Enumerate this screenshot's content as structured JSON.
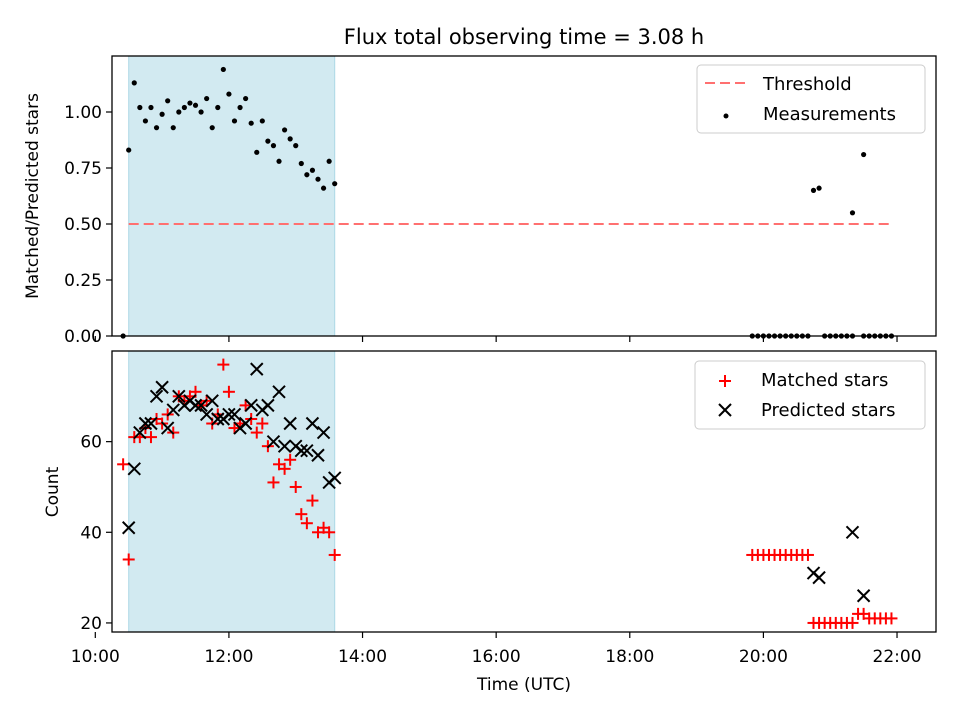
{
  "colors": {
    "threshold": "#ff7070",
    "shade": "#add8e6",
    "matched": "#ff0000",
    "predicted": "#000000",
    "measurements": "#000000"
  },
  "chart_data": [
    {
      "type": "scatter",
      "title": "Flux total observing time = 3.08 h",
      "xlabel": "",
      "ylabel": "Matched/Predicted stars",
      "xlim": [
        "10:15",
        "22:35"
      ],
      "ylim": [
        0.0,
        1.25
      ],
      "yticks": [
        0.0,
        0.25,
        0.5,
        0.75,
        1.0
      ],
      "ytick_labels": [
        "0.00",
        "0.25",
        "0.50",
        "0.75",
        "1.00"
      ],
      "shaded_span": [
        "10:30",
        "13:35"
      ],
      "legend": {
        "position": "top-right",
        "entries": [
          "Threshold",
          "Measurements"
        ]
      },
      "threshold": {
        "name": "Threshold",
        "y": 0.5,
        "x_range": [
          "10:30",
          "21:55"
        ],
        "style": "dashed"
      },
      "series": [
        {
          "name": "Measurements",
          "marker": "dot",
          "points": [
            [
              "10:25",
              0.0
            ],
            [
              "10:30",
              0.83
            ],
            [
              "10:35",
              1.13
            ],
            [
              "10:40",
              1.02
            ],
            [
              "10:45",
              0.96
            ],
            [
              "10:50",
              1.02
            ],
            [
              "10:55",
              0.93
            ],
            [
              "11:00",
              0.99
            ],
            [
              "11:05",
              1.05
            ],
            [
              "11:10",
              0.93
            ],
            [
              "11:15",
              1.0
            ],
            [
              "11:20",
              1.02
            ],
            [
              "11:25",
              1.04
            ],
            [
              "11:30",
              1.03
            ],
            [
              "11:35",
              1.0
            ],
            [
              "11:40",
              1.06
            ],
            [
              "11:45",
              0.93
            ],
            [
              "11:50",
              1.02
            ],
            [
              "11:55",
              1.19
            ],
            [
              "12:00",
              1.08
            ],
            [
              "12:05",
              0.96
            ],
            [
              "12:10",
              1.02
            ],
            [
              "12:15",
              1.06
            ],
            [
              "12:20",
              0.95
            ],
            [
              "12:25",
              0.82
            ],
            [
              "12:30",
              0.96
            ],
            [
              "12:35",
              0.87
            ],
            [
              "12:40",
              0.85
            ],
            [
              "12:45",
              0.78
            ],
            [
              "12:50",
              0.92
            ],
            [
              "12:55",
              0.88
            ],
            [
              "13:00",
              0.85
            ],
            [
              "13:05",
              0.77
            ],
            [
              "13:10",
              0.72
            ],
            [
              "13:15",
              0.74
            ],
            [
              "13:20",
              0.7
            ],
            [
              "13:25",
              0.66
            ],
            [
              "13:30",
              0.78
            ],
            [
              "13:35",
              0.68
            ],
            [
              "19:50",
              0.0
            ],
            [
              "19:55",
              0.0
            ],
            [
              "20:00",
              0.0
            ],
            [
              "20:05",
              0.0
            ],
            [
              "20:10",
              0.0
            ],
            [
              "20:15",
              0.0
            ],
            [
              "20:20",
              0.0
            ],
            [
              "20:25",
              0.0
            ],
            [
              "20:30",
              0.0
            ],
            [
              "20:35",
              0.0
            ],
            [
              "20:40",
              0.0
            ],
            [
              "20:45",
              0.65
            ],
            [
              "20:50",
              0.66
            ],
            [
              "20:55",
              0.0
            ],
            [
              "21:00",
              0.0
            ],
            [
              "21:05",
              0.0
            ],
            [
              "21:10",
              0.0
            ],
            [
              "21:15",
              0.0
            ],
            [
              "21:20",
              0.0
            ],
            [
              "21:20",
              0.55
            ],
            [
              "21:30",
              0.0
            ],
            [
              "21:30",
              0.81
            ],
            [
              "21:35",
              0.0
            ],
            [
              "21:40",
              0.0
            ],
            [
              "21:45",
              0.0
            ],
            [
              "21:50",
              0.0
            ],
            [
              "21:55",
              0.0
            ]
          ]
        }
      ]
    },
    {
      "type": "scatter",
      "title": "",
      "xlabel": "Time (UTC)",
      "ylabel": "Count",
      "xlim": [
        "10:15",
        "22:35"
      ],
      "ylim": [
        18,
        80
      ],
      "yticks": [
        20,
        40,
        60
      ],
      "ytick_labels": [
        "20",
        "40",
        "60"
      ],
      "xticks": [
        "10:00",
        "12:00",
        "14:00",
        "16:00",
        "18:00",
        "20:00",
        "22:00"
      ],
      "shaded_span": [
        "10:30",
        "13:35"
      ],
      "legend": {
        "position": "top-right",
        "entries": [
          "Matched stars",
          "Predicted stars"
        ]
      },
      "series": [
        {
          "name": "Matched stars",
          "marker": "plus",
          "points": [
            [
              "10:25",
              55
            ],
            [
              "10:30",
              34
            ],
            [
              "10:35",
              61
            ],
            [
              "10:40",
              61
            ],
            [
              "10:45",
              63
            ],
            [
              "10:50",
              61
            ],
            [
              "10:55",
              65
            ],
            [
              "11:00",
              64
            ],
            [
              "11:05",
              66
            ],
            [
              "11:10",
              62
            ],
            [
              "11:15",
              70
            ],
            [
              "11:20",
              69
            ],
            [
              "11:25",
              70
            ],
            [
              "11:30",
              71
            ],
            [
              "11:35",
              68
            ],
            [
              "11:40",
              69
            ],
            [
              "11:45",
              64
            ],
            [
              "11:50",
              66
            ],
            [
              "11:55",
              77
            ],
            [
              "12:00",
              71
            ],
            [
              "12:05",
              63
            ],
            [
              "12:10",
              64
            ],
            [
              "12:15",
              68
            ],
            [
              "12:20",
              65
            ],
            [
              "12:25",
              62
            ],
            [
              "12:30",
              64
            ],
            [
              "12:35",
              59
            ],
            [
              "12:40",
              51
            ],
            [
              "12:45",
              55
            ],
            [
              "12:50",
              54
            ],
            [
              "12:55",
              56
            ],
            [
              "13:00",
              50
            ],
            [
              "13:05",
              44
            ],
            [
              "13:10",
              42
            ],
            [
              "13:15",
              47
            ],
            [
              "13:20",
              40
            ],
            [
              "13:25",
              41
            ],
            [
              "13:30",
              40
            ],
            [
              "13:35",
              35
            ],
            [
              "19:50",
              35
            ],
            [
              "19:55",
              35
            ],
            [
              "20:00",
              35
            ],
            [
              "20:05",
              35
            ],
            [
              "20:10",
              35
            ],
            [
              "20:15",
              35
            ],
            [
              "20:20",
              35
            ],
            [
              "20:25",
              35
            ],
            [
              "20:30",
              35
            ],
            [
              "20:35",
              35
            ],
            [
              "20:40",
              35
            ],
            [
              "20:45",
              20
            ],
            [
              "20:50",
              20
            ],
            [
              "20:55",
              20
            ],
            [
              "21:00",
              20
            ],
            [
              "21:05",
              20
            ],
            [
              "21:10",
              20
            ],
            [
              "21:15",
              20
            ],
            [
              "21:20",
              20
            ],
            [
              "21:25",
              22
            ],
            [
              "21:30",
              22
            ],
            [
              "21:35",
              21
            ],
            [
              "21:40",
              21
            ],
            [
              "21:45",
              21
            ],
            [
              "21:50",
              21
            ],
            [
              "21:55",
              21
            ]
          ]
        },
        {
          "name": "Predicted stars",
          "marker": "x",
          "points": [
            [
              "10:30",
              41
            ],
            [
              "10:35",
              54
            ],
            [
              "10:40",
              62
            ],
            [
              "10:45",
              64
            ],
            [
              "10:50",
              64
            ],
            [
              "10:55",
              70
            ],
            [
              "11:00",
              72
            ],
            [
              "11:05",
              63
            ],
            [
              "11:10",
              67
            ],
            [
              "11:15",
              70
            ],
            [
              "11:20",
              68
            ],
            [
              "11:25",
              69
            ],
            [
              "11:30",
              68
            ],
            [
              "11:35",
              68
            ],
            [
              "11:40",
              66
            ],
            [
              "11:45",
              69
            ],
            [
              "11:50",
              65
            ],
            [
              "11:55",
              65
            ],
            [
              "12:00",
              66
            ],
            [
              "12:05",
              66
            ],
            [
              "12:10",
              63
            ],
            [
              "12:15",
              64
            ],
            [
              "12:20",
              68
            ],
            [
              "12:25",
              76
            ],
            [
              "12:30",
              67
            ],
            [
              "12:35",
              68
            ],
            [
              "12:40",
              60
            ],
            [
              "12:45",
              71
            ],
            [
              "12:50",
              59
            ],
            [
              "12:55",
              64
            ],
            [
              "13:00",
              59
            ],
            [
              "13:05",
              58
            ],
            [
              "13:10",
              58
            ],
            [
              "13:15",
              64
            ],
            [
              "13:20",
              57
            ],
            [
              "13:25",
              62
            ],
            [
              "13:30",
              51
            ],
            [
              "13:35",
              52
            ],
            [
              "20:45",
              31
            ],
            [
              "20:50",
              30
            ],
            [
              "21:20",
              40
            ],
            [
              "21:30",
              26
            ]
          ]
        }
      ]
    }
  ]
}
